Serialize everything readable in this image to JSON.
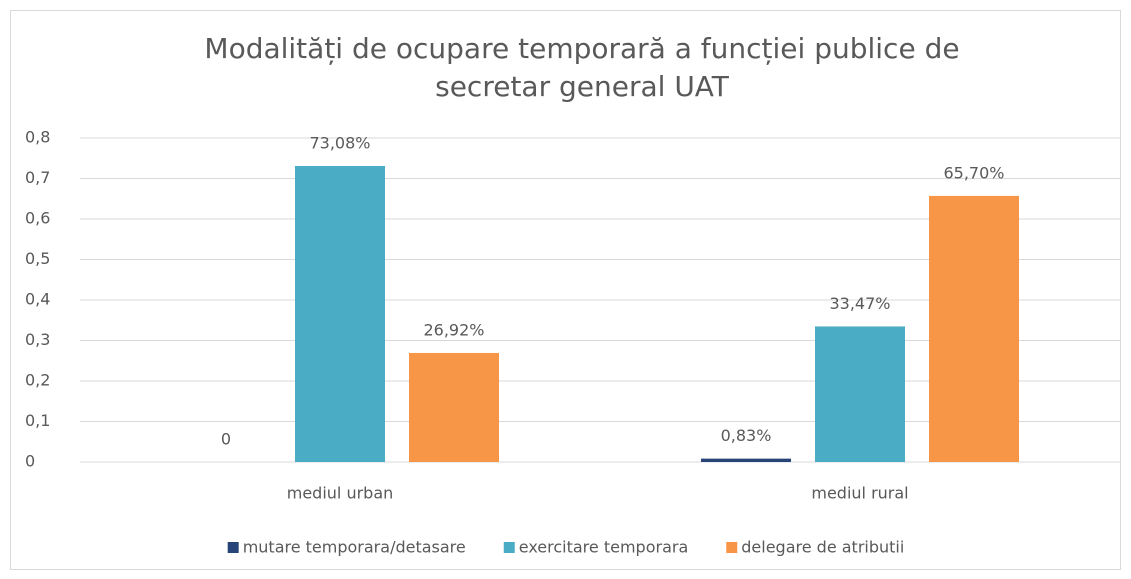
{
  "chart_data": {
    "type": "bar",
    "title": [
      "Modalități de ocupare temporară a funcției publice de",
      "secretar general UAT"
    ],
    "categories": [
      "mediul urban",
      "mediul rural"
    ],
    "series": [
      {
        "name": "mutare temporara/detasare",
        "color": "#264478",
        "values": [
          0,
          0.0083
        ],
        "value_labels": [
          "0",
          "0,83%"
        ]
      },
      {
        "name": "exercitare temporara",
        "color": "#4bacc6",
        "values": [
          0.7308,
          0.3347
        ],
        "value_labels": [
          "73,08%",
          "33,47%"
        ]
      },
      {
        "name": "delegare de atributii",
        "color": "#f79646",
        "values": [
          0.2692,
          0.657
        ],
        "value_labels": [
          "26,92%",
          "65,70%"
        ]
      }
    ],
    "ylim": [
      0,
      0.8
    ],
    "yticks": [
      0,
      {
        "value": 0.1,
        "label": "0,1"
      },
      {
        "value": 0.2,
        "label": "0,2"
      },
      {
        "value": 0.3,
        "label": "0,3"
      },
      {
        "value": 0.4,
        "label": "0,4"
      },
      {
        "value": 0.5,
        "label": "0,5"
      },
      {
        "value": 0.6,
        "label": "0,6"
      },
      {
        "value": 0.7,
        "label": "0,7"
      },
      {
        "value": 0.8,
        "label": "0,8"
      }
    ],
    "grid": true,
    "legend": "bottom"
  }
}
